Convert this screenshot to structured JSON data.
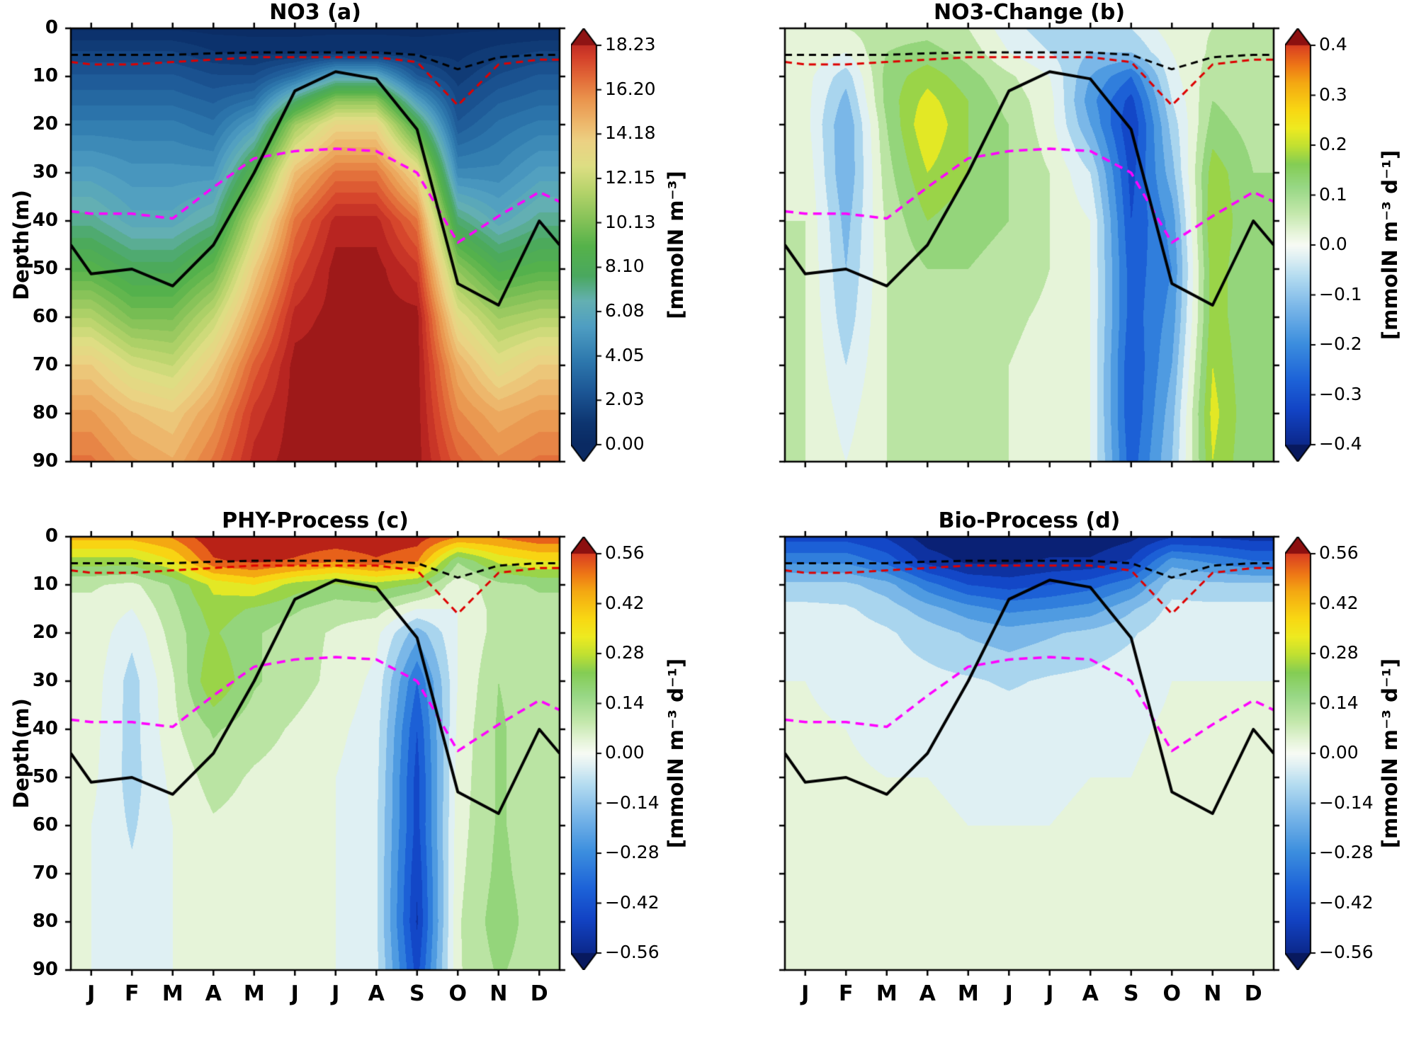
{
  "figure": {
    "ylabel": "Depth(m)",
    "depth_ticks": [
      "0",
      "10",
      "20",
      "30",
      "40",
      "50",
      "60",
      "70",
      "80",
      "90"
    ],
    "month_labels": [
      "J",
      "F",
      "M",
      "A",
      "M",
      "J",
      "J",
      "A",
      "S",
      "O",
      "N",
      "D"
    ],
    "background": "#ffffff"
  },
  "colors": {
    "axis": "#000000",
    "mld_line": "#000000",
    "surface_black_dashed": "#000000",
    "surface_red_dashed": "#dd0000",
    "nutricline_magenta_dashed": "#ff00ff",
    "cmap_no3": [
      [
        0.0,
        "#0a2a63"
      ],
      [
        0.05,
        "#0d3570"
      ],
      [
        0.12,
        "#1b5493"
      ],
      [
        0.2,
        "#2e79ae"
      ],
      [
        0.28,
        "#4f9ec2"
      ],
      [
        0.34,
        "#64b0b2"
      ],
      [
        0.4,
        "#4aa85f"
      ],
      [
        0.47,
        "#55b24a"
      ],
      [
        0.53,
        "#83c157"
      ],
      [
        0.6,
        "#b5d36a"
      ],
      [
        0.66,
        "#ddde83"
      ],
      [
        0.72,
        "#ecd183"
      ],
      [
        0.76,
        "#edb96d"
      ],
      [
        0.82,
        "#ea944d"
      ],
      [
        0.87,
        "#e26a38"
      ],
      [
        0.92,
        "#d4402a"
      ],
      [
        0.97,
        "#b32020"
      ],
      [
        1.0,
        "#8f1414"
      ]
    ],
    "cmap_diverging": [
      [
        0.0,
        "#08195e"
      ],
      [
        0.06,
        "#0c2a8f"
      ],
      [
        0.13,
        "#1243c4"
      ],
      [
        0.2,
        "#1d63d8"
      ],
      [
        0.28,
        "#3c8ede"
      ],
      [
        0.36,
        "#79b6e8"
      ],
      [
        0.43,
        "#b4dcf0"
      ],
      [
        0.475,
        "#e2f1f3"
      ],
      [
        0.5,
        "#f8fbf4"
      ],
      [
        0.525,
        "#e8f5dc"
      ],
      [
        0.57,
        "#c4e8ac"
      ],
      [
        0.63,
        "#97d784"
      ],
      [
        0.68,
        "#84cd54"
      ],
      [
        0.72,
        "#c0e032"
      ],
      [
        0.76,
        "#eeea20"
      ],
      [
        0.8,
        "#f8d813"
      ],
      [
        0.86,
        "#f4a912"
      ],
      [
        0.9,
        "#ee7616"
      ],
      [
        0.94,
        "#dc4420"
      ],
      [
        0.97,
        "#bc2318"
      ],
      [
        1.0,
        "#8d1010"
      ]
    ]
  },
  "overlay_lines": {
    "x_months": [
      0.5,
      1,
      2,
      3,
      4,
      5,
      6,
      7,
      8,
      9,
      10,
      11,
      12,
      12.5
    ],
    "mld_solid_black_depth_m": [
      45,
      51,
      50,
      53.5,
      45,
      30,
      13,
      9,
      10.5,
      21,
      53,
      57.5,
      40,
      45
    ],
    "dashed_black_depth_m": [
      5.5,
      5.5,
      5.5,
      5.5,
      5.2,
      5,
      5,
      5,
      5,
      5.5,
      8.5,
      6,
      5.5,
      5.5
    ],
    "dashed_red_depth_m": [
      7,
      7.5,
      7.5,
      7,
      6.5,
      6,
      6,
      6,
      6,
      7,
      16,
      7.5,
      6.5,
      6.5
    ],
    "dashed_magenta_depth_m": [
      38,
      38.5,
      38.5,
      39.5,
      33,
      27,
      25.5,
      25,
      25.5,
      30,
      44.5,
      39,
      34,
      36
    ]
  },
  "chart_data": [
    {
      "id": "a",
      "type": "heatmap",
      "title": "NO3 (a)",
      "x_categories": [
        "J",
        "F",
        "M",
        "A",
        "M",
        "J",
        "J",
        "A",
        "S",
        "O",
        "N",
        "D"
      ],
      "xlim": [
        0.5,
        12.5
      ],
      "ylim": [
        0,
        90
      ],
      "depths": [
        0,
        5,
        10,
        15,
        20,
        30,
        40,
        50,
        60,
        70,
        80,
        90
      ],
      "field_domain": [
        0,
        19.25
      ],
      "colormap": "no3",
      "quant_levels": 40,
      "values": [
        [
          0.4,
          0.4,
          0.4,
          0.3,
          0.3,
          0.3,
          0.3,
          0.3,
          0.3,
          0.4,
          0.4,
          0.4
        ],
        [
          1.5,
          1.5,
          1.5,
          1.0,
          0.8,
          0.8,
          1.0,
          1.0,
          0.8,
          0.8,
          1.2,
          1.5
        ],
        [
          2.5,
          2.5,
          2.5,
          2.0,
          2.0,
          3.5,
          6.0,
          6.0,
          2.5,
          1.2,
          2.0,
          2.5
        ],
        [
          3.2,
          3.2,
          3.2,
          2.8,
          3.5,
          7.5,
          10.5,
          10.5,
          5.5,
          1.8,
          2.8,
          3.2
        ],
        [
          4.0,
          4.0,
          4.0,
          3.5,
          5.5,
          11.0,
          13.5,
          13.5,
          8.5,
          2.5,
          3.5,
          4.0
        ],
        [
          5.5,
          5.0,
          5.0,
          5.0,
          9.0,
          14.5,
          16.5,
          16.5,
          13.5,
          4.5,
          4.5,
          5.5
        ],
        [
          7.0,
          6.0,
          6.0,
          7.0,
          12.0,
          16.5,
          18.5,
          18.5,
          16.5,
          7.5,
          6.0,
          7.0
        ],
        [
          9.0,
          8.0,
          8.0,
          9.5,
          14.0,
          17.5,
          19.0,
          19.0,
          18.0,
          10.5,
          8.5,
          9.0
        ],
        [
          11.5,
          10.0,
          10.0,
          12.0,
          15.5,
          18.5,
          19.0,
          19.0,
          19.0,
          13.0,
          11.0,
          11.5
        ],
        [
          14.0,
          12.5,
          12.0,
          14.0,
          17.0,
          19.0,
          19.0,
          19.0,
          19.0,
          15.0,
          13.0,
          14.0
        ],
        [
          15.5,
          14.5,
          14.0,
          15.5,
          18.0,
          19.0,
          19.0,
          19.0,
          19.0,
          16.0,
          15.0,
          15.5
        ],
        [
          16.5,
          15.5,
          15.0,
          16.5,
          18.5,
          19.0,
          19.0,
          19.0,
          19.0,
          17.0,
          16.0,
          16.5
        ]
      ],
      "colorbar": {
        "range": [
          0,
          18.23
        ],
        "ticks": [
          "18.23",
          "16.20",
          "14.18",
          "12.15",
          "10.13",
          "8.10",
          "6.08",
          "4.05",
          "2.03",
          "0.00"
        ],
        "tick_values": [
          18.23,
          16.2,
          14.18,
          12.15,
          10.13,
          8.1,
          6.08,
          4.05,
          2.03,
          0.0
        ],
        "unit": "[mmolN m⁻³]"
      }
    },
    {
      "id": "b",
      "type": "heatmap",
      "title": "NO3-Change (b)",
      "x_categories": [
        "J",
        "F",
        "M",
        "A",
        "M",
        "J",
        "J",
        "A",
        "S",
        "O",
        "N",
        "D"
      ],
      "xlim": [
        0.5,
        12.5
      ],
      "ylim": [
        0,
        90
      ],
      "depths": [
        0,
        5,
        10,
        15,
        20,
        30,
        40,
        50,
        60,
        70,
        80,
        90
      ],
      "field_domain": [
        -0.45,
        0.45
      ],
      "colormap": "diverging",
      "quant_levels": 18,
      "values": [
        [
          0.05,
          0.05,
          0.08,
          0.08,
          0.05,
          -0.03,
          -0.08,
          -0.08,
          -0.05,
          0.03,
          0.05,
          0.05
        ],
        [
          0.04,
          0.0,
          0.1,
          0.12,
          0.08,
          0.0,
          -0.05,
          -0.1,
          -0.1,
          0.0,
          0.06,
          0.05
        ],
        [
          0.02,
          -0.08,
          0.12,
          0.18,
          0.12,
          0.06,
          0.0,
          -0.15,
          -0.25,
          -0.02,
          0.08,
          0.05
        ],
        [
          0.02,
          -0.12,
          0.12,
          0.22,
          0.15,
          0.08,
          0.02,
          -0.18,
          -0.32,
          -0.05,
          0.1,
          0.07
        ],
        [
          0.02,
          -0.15,
          0.1,
          0.25,
          0.15,
          0.1,
          0.02,
          -0.15,
          -0.35,
          -0.08,
          0.12,
          0.08
        ],
        [
          0.04,
          -0.15,
          0.08,
          0.2,
          0.15,
          0.1,
          0.05,
          -0.05,
          -0.32,
          -0.12,
          0.18,
          0.1
        ],
        [
          0.05,
          -0.12,
          0.06,
          0.15,
          0.12,
          0.1,
          0.05,
          0.0,
          -0.3,
          -0.18,
          0.2,
          0.1
        ],
        [
          0.05,
          -0.1,
          0.05,
          0.1,
          0.1,
          0.08,
          0.05,
          0.0,
          -0.28,
          -0.2,
          0.18,
          0.1
        ],
        [
          0.05,
          -0.08,
          0.05,
          0.08,
          0.08,
          0.06,
          0.04,
          0.0,
          -0.28,
          -0.18,
          0.18,
          0.1
        ],
        [
          0.05,
          -0.05,
          0.05,
          0.06,
          0.06,
          0.05,
          0.03,
          0.0,
          -0.3,
          -0.15,
          0.2,
          0.1
        ],
        [
          0.05,
          -0.02,
          0.05,
          0.05,
          0.05,
          0.05,
          0.02,
          0.0,
          -0.3,
          -0.12,
          0.22,
          0.1
        ],
        [
          0.05,
          0.0,
          0.05,
          0.05,
          0.05,
          0.05,
          0.02,
          0.0,
          -0.28,
          -0.1,
          0.2,
          0.1
        ]
      ],
      "colorbar": {
        "range": [
          -0.4,
          0.4
        ],
        "ticks": [
          "0.4",
          "0.3",
          "0.2",
          "0.1",
          "0.0",
          "−0.1",
          "−0.2",
          "−0.3",
          "−0.4"
        ],
        "tick_values": [
          0.4,
          0.3,
          0.2,
          0.1,
          0.0,
          -0.1,
          -0.2,
          -0.3,
          -0.4
        ],
        "unit": "[mmolN m⁻³ d⁻¹]"
      }
    },
    {
      "id": "c",
      "type": "heatmap",
      "title": "PHY-Process (c)",
      "x_categories": [
        "J",
        "F",
        "M",
        "A",
        "M",
        "J",
        "J",
        "A",
        "S",
        "O",
        "N",
        "D"
      ],
      "xlim": [
        0.5,
        12.5
      ],
      "ylim": [
        0,
        90
      ],
      "depths": [
        0,
        5,
        10,
        15,
        20,
        30,
        40,
        50,
        60,
        70,
        80,
        90
      ],
      "field_domain": [
        -0.63,
        0.63
      ],
      "colormap": "diverging",
      "quant_levels": 18,
      "values": [
        [
          0.45,
          0.45,
          0.5,
          0.62,
          0.62,
          0.62,
          0.62,
          0.62,
          0.6,
          0.5,
          0.5,
          0.55
        ],
        [
          0.25,
          0.25,
          0.35,
          0.55,
          0.58,
          0.55,
          0.5,
          0.55,
          0.5,
          0.15,
          0.3,
          0.35
        ],
        [
          0.08,
          0.05,
          0.15,
          0.3,
          0.35,
          0.25,
          0.2,
          0.25,
          0.2,
          0.02,
          0.12,
          0.15
        ],
        [
          0.05,
          0.0,
          0.12,
          0.25,
          0.2,
          0.15,
          0.1,
          0.1,
          0.0,
          0.0,
          0.1,
          0.12
        ],
        [
          0.05,
          -0.05,
          0.1,
          0.22,
          0.15,
          0.1,
          0.06,
          0.02,
          -0.18,
          0.0,
          0.1,
          0.1
        ],
        [
          0.04,
          -0.1,
          0.06,
          0.28,
          0.15,
          0.1,
          0.05,
          -0.02,
          -0.35,
          0.0,
          0.14,
          0.1
        ],
        [
          0.03,
          -0.1,
          0.05,
          0.15,
          0.1,
          0.06,
          0.02,
          -0.04,
          -0.42,
          0.02,
          0.15,
          0.1
        ],
        [
          0.02,
          -0.1,
          0.02,
          0.1,
          0.06,
          0.04,
          0.0,
          -0.05,
          -0.45,
          0.03,
          0.15,
          0.1
        ],
        [
          0.0,
          -0.08,
          0.0,
          0.06,
          0.04,
          0.02,
          0.0,
          -0.06,
          -0.45,
          0.04,
          0.15,
          0.1
        ],
        [
          0.0,
          -0.06,
          0.0,
          0.04,
          0.02,
          0.0,
          0.0,
          -0.06,
          -0.48,
          0.05,
          0.16,
          0.1
        ],
        [
          0.0,
          -0.04,
          0.0,
          0.02,
          0.0,
          0.0,
          0.0,
          -0.06,
          -0.5,
          0.06,
          0.18,
          0.1
        ],
        [
          0.0,
          -0.02,
          0.0,
          0.02,
          0.0,
          0.0,
          0.0,
          -0.05,
          -0.45,
          0.06,
          0.15,
          0.1
        ]
      ],
      "colorbar": {
        "range": [
          -0.56,
          0.56
        ],
        "ticks": [
          "0.56",
          "0.42",
          "0.28",
          "0.14",
          "0.00",
          "−0.14",
          "−0.28",
          "−0.42",
          "−0.56"
        ],
        "tick_values": [
          0.56,
          0.42,
          0.28,
          0.14,
          0.0,
          -0.14,
          -0.28,
          -0.42,
          -0.56
        ],
        "unit": "[mmolN m⁻³ d⁻¹]"
      }
    },
    {
      "id": "d",
      "type": "heatmap",
      "title": "Bio-Process (d)",
      "x_categories": [
        "J",
        "F",
        "M",
        "A",
        "M",
        "J",
        "J",
        "A",
        "S",
        "O",
        "N",
        "D"
      ],
      "xlim": [
        0.5,
        12.5
      ],
      "ylim": [
        0,
        90
      ],
      "depths": [
        0,
        5,
        10,
        15,
        20,
        30,
        40,
        50,
        60,
        70,
        80,
        90
      ],
      "field_domain": [
        -0.63,
        0.63
      ],
      "colormap": "diverging",
      "quant_levels": 18,
      "values": [
        [
          -0.45,
          -0.45,
          -0.5,
          -0.6,
          -0.62,
          -0.62,
          -0.62,
          -0.62,
          -0.58,
          -0.5,
          -0.5,
          -0.52
        ],
        [
          -0.3,
          -0.3,
          -0.38,
          -0.52,
          -0.58,
          -0.58,
          -0.55,
          -0.55,
          -0.48,
          -0.25,
          -0.3,
          -0.35
        ],
        [
          -0.12,
          -0.12,
          -0.18,
          -0.32,
          -0.42,
          -0.45,
          -0.42,
          -0.38,
          -0.3,
          -0.1,
          -0.12,
          -0.12
        ],
        [
          -0.05,
          -0.06,
          -0.1,
          -0.18,
          -0.25,
          -0.3,
          -0.28,
          -0.25,
          -0.15,
          -0.05,
          -0.05,
          -0.05
        ],
        [
          -0.02,
          -0.04,
          -0.06,
          -0.1,
          -0.15,
          -0.18,
          -0.15,
          -0.12,
          -0.08,
          -0.02,
          -0.02,
          -0.02
        ],
        [
          0.0,
          -0.02,
          -0.04,
          -0.05,
          -0.06,
          -0.08,
          -0.06,
          -0.05,
          -0.03,
          0.0,
          0.0,
          0.0
        ],
        [
          0.01,
          0.0,
          -0.02,
          -0.02,
          -0.03,
          -0.03,
          -0.03,
          -0.02,
          -0.01,
          0.01,
          0.01,
          0.01
        ],
        [
          0.02,
          0.01,
          0.0,
          0.0,
          -0.01,
          -0.01,
          -0.01,
          0.0,
          0.0,
          0.02,
          0.02,
          0.02
        ],
        [
          0.02,
          0.02,
          0.01,
          0.01,
          0.0,
          0.0,
          0.0,
          0.01,
          0.01,
          0.02,
          0.02,
          0.02
        ],
        [
          0.02,
          0.02,
          0.02,
          0.01,
          0.01,
          0.01,
          0.01,
          0.01,
          0.01,
          0.02,
          0.02,
          0.02
        ],
        [
          0.02,
          0.02,
          0.02,
          0.02,
          0.01,
          0.01,
          0.01,
          0.02,
          0.02,
          0.02,
          0.02,
          0.02
        ],
        [
          0.02,
          0.02,
          0.02,
          0.02,
          0.02,
          0.02,
          0.02,
          0.02,
          0.02,
          0.02,
          0.02,
          0.02
        ]
      ],
      "colorbar": {
        "range": [
          -0.56,
          0.56
        ],
        "ticks": [
          "0.56",
          "0.42",
          "0.28",
          "0.14",
          "0.00",
          "−0.14",
          "−0.28",
          "−0.42",
          "−0.56"
        ],
        "tick_values": [
          0.56,
          0.42,
          0.28,
          0.14,
          0.0,
          -0.14,
          -0.28,
          -0.42,
          -0.56
        ],
        "unit": "[mmolN m⁻³ d⁻¹]"
      }
    }
  ]
}
